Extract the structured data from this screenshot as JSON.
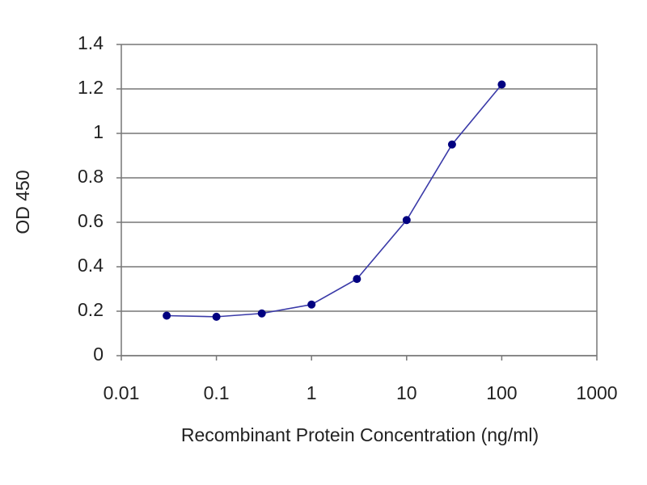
{
  "chart_data": {
    "type": "line",
    "x_label": "Recombinant Protein Concentration (ng/ml)",
    "y_label": "OD 450",
    "x": [
      0.03,
      0.1,
      0.3,
      1,
      3,
      10,
      30,
      100
    ],
    "values": [
      0.18,
      0.175,
      0.19,
      0.23,
      0.345,
      0.61,
      0.95,
      1.22
    ],
    "color": "#3a3aa8",
    "marker_color": "#000080",
    "xscale": "log",
    "xlim": [
      0.01,
      1000
    ],
    "xticks": [
      0.01,
      0.1,
      1,
      10,
      100,
      1000
    ],
    "ylim": [
      0,
      1.4
    ],
    "yticks": [
      0,
      0.2,
      0.4,
      0.6,
      0.8,
      1,
      1.2,
      1.4
    ],
    "grid": true
  }
}
